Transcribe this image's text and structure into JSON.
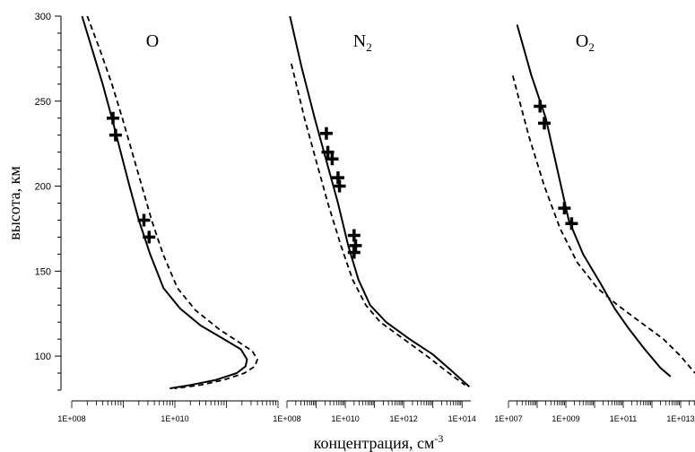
{
  "chart_data": {
    "type": "line",
    "ylabel": "высота, км",
    "xlabel": "концентрация, см",
    "xlabel_sup": "-3",
    "ylim": [
      80,
      300
    ],
    "yticks": [
      "100",
      "150",
      "200",
      "250",
      "300"
    ],
    "log_x": true,
    "grid": false,
    "panels": [
      {
        "label": "O",
        "label_sub": "",
        "xlim_exp": [
          8,
          12
        ],
        "xticks": [
          {
            "exp": 8,
            "label": "1E+008"
          },
          {
            "exp": 10,
            "label": "1E+010"
          }
        ],
        "series": [
          {
            "style": "solid",
            "points": [
              [
                8.2,
                300
              ],
              [
                8.4,
                280
              ],
              [
                8.6,
                260
              ],
              [
                8.78,
                240
              ],
              [
                8.95,
                220
              ],
              [
                9.12,
                200
              ],
              [
                9.3,
                180
              ],
              [
                9.52,
                160
              ],
              [
                9.78,
                140
              ],
              [
                10.1,
                128
              ],
              [
                10.5,
                118
              ],
              [
                10.95,
                110
              ],
              [
                11.28,
                104
              ],
              [
                11.4,
                98
              ],
              [
                11.37,
                94
              ],
              [
                11.2,
                90
              ],
              [
                10.8,
                86
              ],
              [
                10.3,
                83
              ],
              [
                9.9,
                81
              ]
            ]
          },
          {
            "style": "dashed",
            "points": [
              [
                8.3,
                300
              ],
              [
                8.55,
                280
              ],
              [
                8.78,
                260
              ],
              [
                8.98,
                240
              ],
              [
                9.17,
                220
              ],
              [
                9.36,
                200
              ],
              [
                9.55,
                180
              ],
              [
                9.77,
                160
              ],
              [
                10.05,
                140
              ],
              [
                10.4,
                127
              ],
              [
                10.85,
                116
              ],
              [
                11.25,
                108
              ],
              [
                11.5,
                103
              ],
              [
                11.6,
                98
              ],
              [
                11.55,
                94
              ],
              [
                11.35,
                90
              ],
              [
                10.95,
                86
              ],
              [
                10.5,
                83
              ],
              [
                10.0,
                81
              ]
            ]
          }
        ],
        "markers": [
          [
            8.8,
            240
          ],
          [
            8.85,
            230
          ],
          [
            9.4,
            180
          ],
          [
            9.5,
            170
          ]
        ]
      },
      {
        "label": "N",
        "label_sub": "2",
        "xlim_exp": [
          8,
          14.3
        ],
        "xticks": [
          {
            "exp": 8,
            "label": "1E+008"
          },
          {
            "exp": 10,
            "label": "1E+010"
          },
          {
            "exp": 12,
            "label": "1E+012"
          },
          {
            "exp": 14,
            "label": "1E+014"
          }
        ],
        "series": [
          {
            "style": "solid",
            "points": [
              [
                8.1,
                300
              ],
              [
                8.5,
                270
              ],
              [
                8.95,
                240
              ],
              [
                9.35,
                215
              ],
              [
                9.75,
                190
              ],
              [
                10.1,
                165
              ],
              [
                10.45,
                145
              ],
              [
                10.85,
                130
              ],
              [
                11.4,
                120
              ],
              [
                12.2,
                110
              ],
              [
                13.0,
                101
              ],
              [
                13.6,
                92
              ],
              [
                14.25,
                82
              ]
            ]
          },
          {
            "style": "dashed",
            "points": [
              [
                8.15,
                272
              ],
              [
                8.6,
                240
              ],
              [
                9.0,
                215
              ],
              [
                9.4,
                190
              ],
              [
                9.85,
                165
              ],
              [
                10.25,
                145
              ],
              [
                10.7,
                130
              ],
              [
                11.2,
                120
              ],
              [
                12.0,
                110
              ],
              [
                12.8,
                100
              ],
              [
                13.4,
                92
              ],
              [
                14.1,
                83
              ]
            ]
          }
        ],
        "markers": [
          [
            9.35,
            231
          ],
          [
            9.4,
            220
          ],
          [
            9.55,
            216
          ],
          [
            9.75,
            205
          ],
          [
            9.8,
            200
          ],
          [
            10.3,
            171
          ],
          [
            10.35,
            165
          ],
          [
            10.3,
            161
          ]
        ]
      },
      {
        "label": "O",
        "label_sub": "2",
        "xlim_exp": [
          7,
          13.5
        ],
        "xticks": [
          {
            "exp": 7,
            "label": "1E+007"
          },
          {
            "exp": 9,
            "label": "1E+009"
          },
          {
            "exp": 11,
            "label": "1E+011"
          },
          {
            "exp": 13,
            "label": "1E+013"
          }
        ],
        "series": [
          {
            "style": "solid",
            "points": [
              [
                7.3,
                295
              ],
              [
                7.8,
                265
              ],
              [
                8.3,
                240
              ],
              [
                8.7,
                210
              ],
              [
                9.1,
                180
              ],
              [
                9.6,
                160
              ],
              [
                10.2,
                143
              ],
              [
                10.7,
                128
              ],
              [
                11.2,
                116
              ],
              [
                11.75,
                104
              ],
              [
                12.3,
                93
              ],
              [
                12.65,
                88
              ]
            ]
          },
          {
            "style": "dashed",
            "points": [
              [
                7.15,
                265
              ],
              [
                7.7,
                230
              ],
              [
                8.25,
                200
              ],
              [
                8.8,
                175
              ],
              [
                9.4,
                155
              ],
              [
                10.1,
                140
              ],
              [
                10.8,
                130
              ],
              [
                11.6,
                120
              ],
              [
                12.4,
                110
              ],
              [
                13.0,
                100
              ],
              [
                13.5,
                90
              ]
            ]
          }
        ],
        "markers": [
          [
            8.1,
            247
          ],
          [
            8.25,
            237
          ],
          [
            8.95,
            187
          ],
          [
            9.2,
            178
          ]
        ]
      }
    ]
  }
}
